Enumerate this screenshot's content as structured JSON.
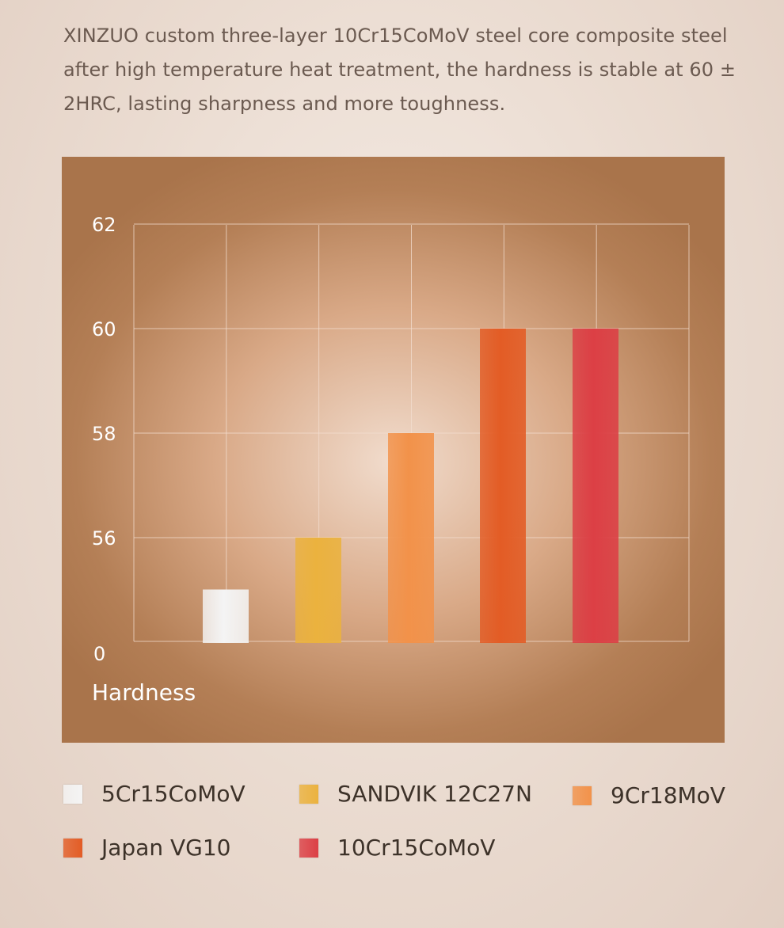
{
  "intro_text": "XINZUO custom three-layer 10Cr15CoMoV steel core composite steel after high temperature heat treatment, the hardness is stable at 60 ± 2HRC, lasting sharpness and more toughness.",
  "chart_data": {
    "type": "bar",
    "categories": [
      "5Cr15CoMoV",
      "SANDVIK 12C27N",
      "9Cr18MoV",
      "Japan VG10",
      "10Cr15CoMoV"
    ],
    "values": [
      55,
      56,
      58,
      60,
      60
    ],
    "colors": [
      "#f4f4f4",
      "#ebb23e",
      "#f2924a",
      "#e35c25",
      "#dc3f45"
    ],
    "ylabel": "Hardness",
    "y_tick_labels": [
      "0",
      "56",
      "58",
      "60",
      "62"
    ],
    "ylim_visible": [
      54,
      62
    ],
    "grid": true,
    "legend_position": "bottom"
  },
  "colors": {
    "panel": "#a9744b",
    "grid": "#f3ddd0",
    "tick_text": "#ffffff"
  }
}
